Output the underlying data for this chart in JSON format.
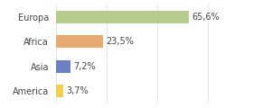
{
  "categories": [
    "Europa",
    "Africa",
    "Asia",
    "America"
  ],
  "values": [
    65.6,
    23.5,
    7.2,
    3.7
  ],
  "bar_colors": [
    "#b5cc8e",
    "#e8a870",
    "#6b7fc4",
    "#f0d050"
  ],
  "labels": [
    "65,6%",
    "23,5%",
    "7,2%",
    "3,7%"
  ],
  "background_color": "#ffffff",
  "xlim": [
    0,
    95
  ],
  "bar_height": 0.5,
  "label_fontsize": 7.0,
  "category_fontsize": 7.0
}
